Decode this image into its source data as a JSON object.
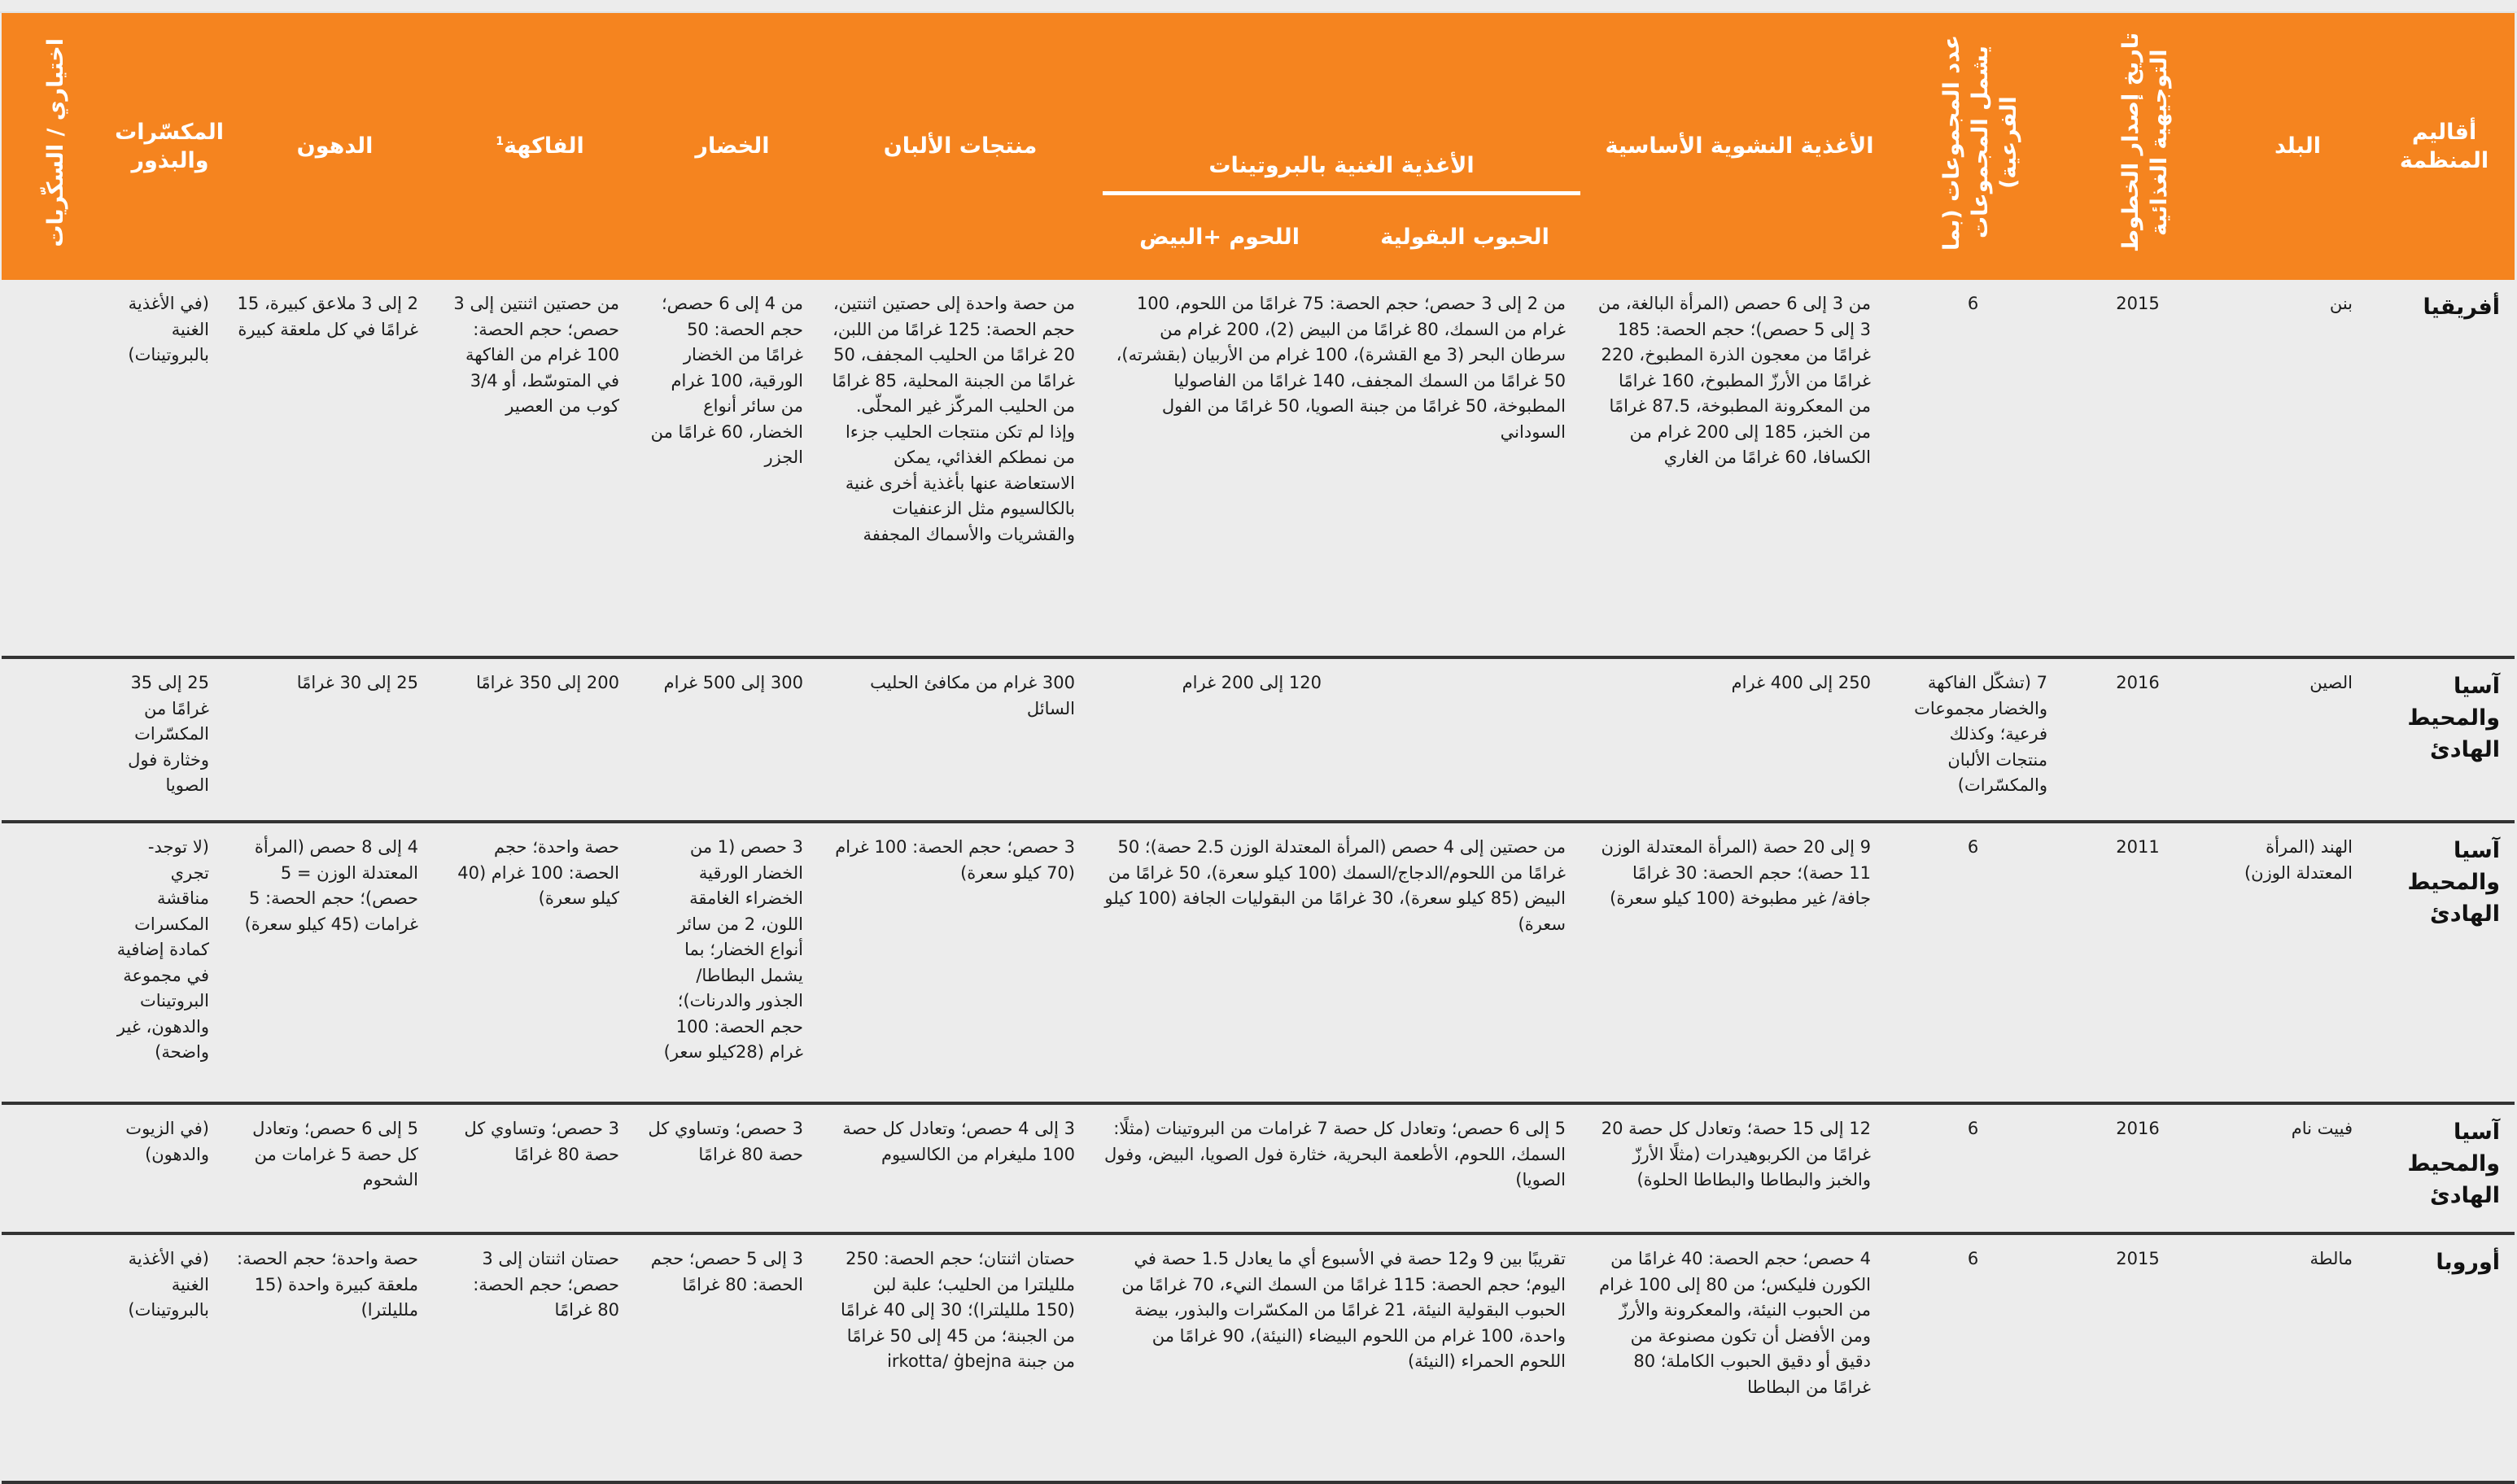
{
  "colors": {
    "header_bg": "#f5841f",
    "header_text": "#ffffff",
    "body_bg": "#ececec",
    "row_divider": "#333333"
  },
  "header": {
    "region": "أقاليم المنظمة",
    "country": "البلد",
    "date": "تاريخ إصدار الخطوط التوجيهية الغذائية",
    "groups": "عدد المجموعات (بما يشمل المجموعات الفرعية)",
    "starchy": "الأغذية النشوية الأساسية",
    "protein": "الأغذية الغنية بالبروتينات",
    "legumes": "الحبوب البقولية",
    "meat": "اللحوم +البيض",
    "dairy": "منتجات الألبان",
    "vegetables": "الخضار",
    "fruit": "الفاكهة",
    "fruit_note": "1",
    "fats": "الدهون",
    "nuts": "المكسّرات والبذور",
    "optional": "اختياري / السكّريات"
  },
  "rows": [
    {
      "region": "أفريقيا",
      "country": "بنن",
      "date": "2015",
      "groups": "6",
      "starchy": "من 3 إلى 6 حصص (المرأة البالغة، من 3 إلى 5 حصص)؛ حجم الحصة: 185 غرامًا من معجون الذرة المطبوخ، 220 غرامًا من الأرزّ المطبوخ، 160 غرامًا من المعكرونة المطبوخة، 87.5 غرامًا من الخبز، 185 إلى 200 غرام من الكسافا، 60 غرامًا من الغاري",
      "protein": "من 2 إلى 3 حصص؛ حجم الحصة: 75 غرامًا من اللحوم، 100 غرام من السمك، 80 غرامًا من البيض (2)، 200 غرام من سرطان البحر (3 مع القشرة)، 100 غرام من الأربيان (بقشرته)، 50 غرامًا من السمك المجفف، 140 غرامًا من الفاصوليا المطبوخة، 50 غرامًا من جبنة الصويا، 50 غرامًا من الفول السوداني",
      "dairy": "من حصة واحدة إلى حصتين اثنتين، حجم الحصة: 125 غرامًا من اللبن، 20 غرامًا من الحليب المجفف، 50 غرامًا من الجبنة المحلية، 85 غرامًا من الحليب المركّز غير المحلّى. وإذا لم تكن منتجات الحليب جزءا من نمطكم الغذائي، يمكن الاستعاضة عنها بأغذية أخرى غنية بالكالسيوم مثل الزعنفيات والقشريات والأسماك المجففة",
      "vegetables": "من 4 إلى 6 حصص؛ حجم الحصة: 50 غرامًا من الخضار الورقية، 100 غرام من سائر أنواع الخضار، 60 غرامًا من الجزر",
      "fruit": "من حصتين اثنتين إلى 3 حصص؛ حجم الحصة: 100 غرام من الفاكهة في المتوسّط، أو 3/4 كوب من العصير",
      "fats": "2 إلى 3 ملاعق كبيرة، 15 غرامًا في كل ملعقة كبيرة",
      "nuts": "(في الأغذية الغنية بالبروتينات)",
      "optional": ""
    },
    {
      "region": "آسيا والمحيط الهادئ",
      "country": "الصين",
      "date": "2016",
      "groups": "7 (تشكّل الفاكهة والخضار مجموعات فرعية؛ وكذلك منتجات الألبان والمكسّرات)",
      "starchy": "250 إلى 400 غرام",
      "legumes": "",
      "meat": "120 إلى 200 غرام",
      "dairy": "300 غرام من مكافئ الحليب السائل",
      "vegetables": "300 إلى 500 غرام",
      "fruit": "200 إلى 350 غرامًا",
      "fats": "25 إلى 30 غرامًا",
      "nuts": "25 إلى 35 غرامًا من المكسّرات وخثارة فول الصويا",
      "optional": ""
    },
    {
      "region": "آسيا والمحيط الهادئ",
      "country": "الهند (المرأة المعتدلة الوزن)",
      "date": "2011",
      "groups": "6",
      "starchy": "9 إلى 20 حصة (المرأة المعتدلة الوزن 11 حصة)؛ حجم الحصة: 30 غرامًا جافة/ غير مطبوخة (100 كيلو سعرة)",
      "protein": "من حصتين إلى 4 حصص (المرأة المعتدلة الوزن 2.5 حصة)؛ 50 غرامًا من اللحوم/الدجاج/السمك (100 كيلو سعرة)، 50 غرامًا من البيض (85 كيلو سعرة)، 30 غرامًا من البقوليات الجافة (100 كيلو سعرة)",
      "dairy": "3 حصص؛ حجم الحصة: 100 غرام (70 كيلو سعرة)",
      "vegetables": "3 حصص (1 من الخضار الورقية الخضراء الغامقة اللون، 2 من سائر أنواع الخضار؛ بما يشمل البطاطا/ الجذور والدرنات)؛ حجم الحصة: 100 غرام (28كيلو سعر)",
      "fruit": "حصة واحدة؛ حجم الحصة: 100 غرام (40 كيلو سعرة)",
      "fats": "4 إلى 8 حصص (المرأة المعتدلة الوزن = 5 حصص)؛ حجم الحصة: 5 غرامات (45 كيلو سعرة)",
      "nuts": "(لا توجد- تجري مناقشة المكسرات كمادة إضافية في مجموعة البروتينات والدهون، غير واضحة)",
      "optional": ""
    },
    {
      "region": "آسيا والمحيط الهادئ",
      "country": "فييت نام",
      "date": "2016",
      "groups": "6",
      "starchy": "12 إلى 15 حصة؛ وتعادل كل حصة 20 غرامًا من الكربوهيدرات (مثلًا الأرزّ والخبز والبطاطا والبطاطا الحلوة)",
      "protein": "5 إلى 6 حصص؛ وتعادل كل حصة 7 غرامات من البروتينات (مثلًا: السمك، اللحوم، الأطعمة البحرية، خثارة فول الصويا، البيض، وفول الصويا)",
      "dairy": "3 إلى 4 حصص؛ وتعادل كل حصة 100 مليغرام من الكالسيوم",
      "vegetables": "3 حصص؛ وتساوي كل حصة 80 غرامًا",
      "fruit": "3 حصص؛ وتساوي كل حصة 80 غرامًا",
      "fats": "5 إلى 6 حصص؛ وتعادل كل حصة 5 غرامات من الشحوم",
      "nuts": "(في الزيوت والدهون)",
      "optional": ""
    },
    {
      "region": "أوروبا",
      "country": "مالطة",
      "date": "2015",
      "groups": "6",
      "starchy": "4 حصص؛ حجم الحصة: 40 غرامًا من الكورن فليكس؛ من 80 إلى 100 غرام من الحبوب النيئة، والمعكرونة والأرزّ ومن الأفضل أن تكون مصنوعة من دقيق أو دقيق الحبوب الكاملة؛ 80 غرامًا من البطاطا",
      "protein": "تقريبًا بين 9 و12 حصة في الأسبوع أي ما يعادل 1.5 حصة في اليوم؛ حجم الحصة: 115 غرامًا من السمك النيء، 70 غرامًا من الحبوب البقولية النيئة، 21 غرامًا من المكسّرات والبذور، بيضة واحدة، 100 غرام من اللحوم البيضاء (النيئة)، 90 غرامًا من اللحوم الحمراء (النيئة)",
      "dairy": "حصتان اثنتان؛ حجم الحصة: 250 ملليلترا من الحليب؛ علبة لبن (150 ملليلترا)؛ 30 إلى 40 غرامًا من الجبنة؛ من 45 إلى 50 غرامًا من جبنة irkotta/ ġbejna",
      "vegetables": "3 إلى 5 حصص؛ حجم الحصة: 80 غرامًا",
      "fruit": "حصتان اثنتان إلى 3 حصص؛ حجم الحصة: 80 غرامًا",
      "fats": "حصة واحدة؛ حجم الحصة: ملعقة كبيرة واحدة (15 ملليلترا)",
      "nuts": "(في الأغذية الغنية بالبروتينات)",
      "optional": ""
    }
  ]
}
